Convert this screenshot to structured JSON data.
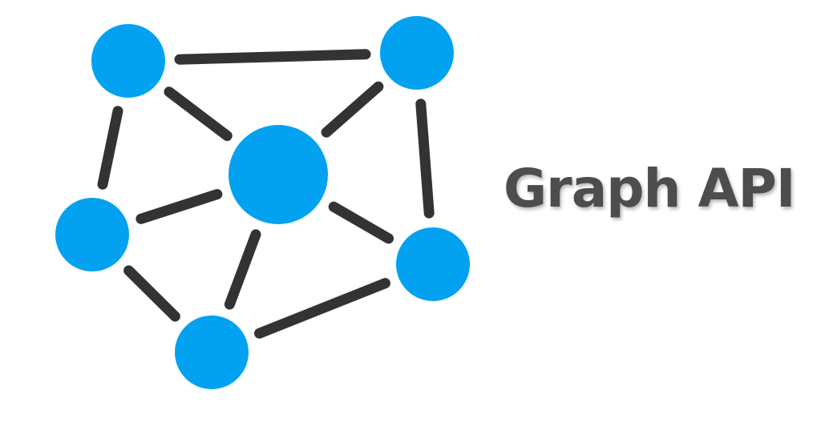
{
  "title": "Graph API",
  "colors": {
    "node": "#03a2f0",
    "edge": "#333333",
    "title": "#4d4d4d",
    "background": "#ffffff"
  },
  "graph": {
    "nodes": [
      "top-left",
      "top-right",
      "center",
      "left",
      "right",
      "bottom"
    ],
    "edges": [
      [
        "top-left",
        "top-right"
      ],
      [
        "top-left",
        "center"
      ],
      [
        "top-left",
        "left"
      ],
      [
        "top-right",
        "center"
      ],
      [
        "top-right",
        "right"
      ],
      [
        "center",
        "left"
      ],
      [
        "center",
        "right"
      ],
      [
        "center",
        "bottom"
      ],
      [
        "left",
        "bottom"
      ],
      [
        "bottom",
        "right"
      ]
    ]
  }
}
